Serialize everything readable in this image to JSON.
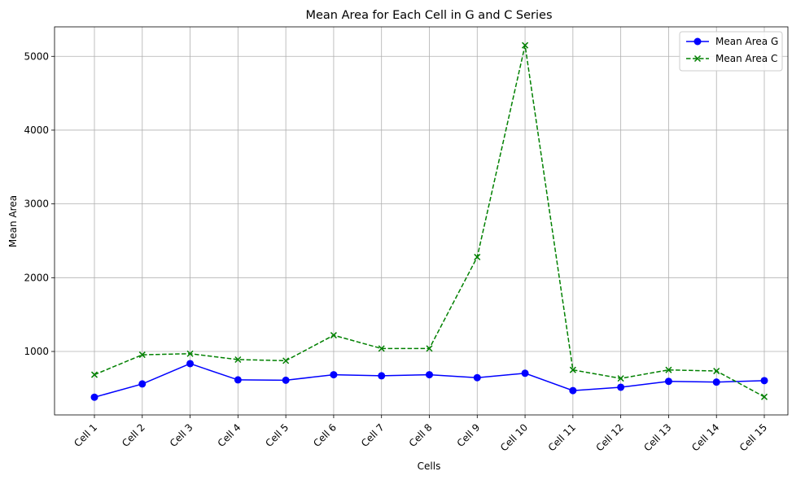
{
  "chart_data": {
    "type": "line",
    "title": "Mean Area for Each Cell in G and C Series",
    "xlabel": "Cells",
    "ylabel": "Mean Area",
    "categories": [
      "Cell 1",
      "Cell 2",
      "Cell 3",
      "Cell 4",
      "Cell 5",
      "Cell 6",
      "Cell 7",
      "Cell 8",
      "Cell 9",
      "Cell 10",
      "Cell 11",
      "Cell 12",
      "Cell 13",
      "Cell 14",
      "Cell 15"
    ],
    "yticks": [
      1000,
      2000,
      3000,
      4000,
      5000
    ],
    "ylim": [
      140,
      5400
    ],
    "grid": true,
    "legend_position": "top-right",
    "series": [
      {
        "name": "Mean Area G",
        "color": "#0000ff",
        "line_style": "solid",
        "marker": "circle",
        "values": [
          380,
          560,
          835,
          615,
          610,
          685,
          670,
          685,
          645,
          705,
          470,
          515,
          595,
          585,
          605
        ]
      },
      {
        "name": "Mean Area C",
        "color": "#008000",
        "line_style": "dashed",
        "marker": "x",
        "values": [
          685,
          955,
          970,
          890,
          875,
          1220,
          1040,
          1040,
          2280,
          5150,
          750,
          635,
          750,
          735,
          385
        ]
      }
    ]
  }
}
